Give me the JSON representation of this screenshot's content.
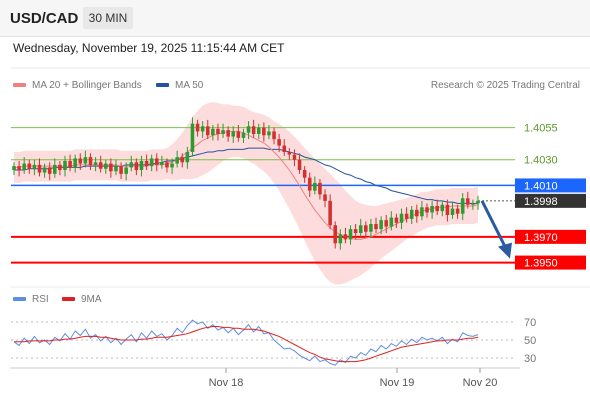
{
  "header": {
    "symbol": "USD/CAD",
    "timeframe": "30 MIN"
  },
  "datetime": "Wednesday, November 19, 2025 11:15:44 AM CET",
  "legend": {
    "ma20_label": "MA 20 + Bollinger Bands",
    "ma50_label": "MA 50",
    "credit": "Research © 2025 Trading Central",
    "rsi_label": "RSI",
    "ma9_label": "9MA"
  },
  "colors": {
    "ma20": "#f08080",
    "ma50": "#26519e",
    "rsi": "#5b8fe0",
    "ma9": "#e02020",
    "up": "#2e9b2e",
    "down": "#d43030",
    "support": "#ff0000",
    "resistance": "#1a66ff",
    "green_level": "#7cc048",
    "band": "#fcd6d6",
    "arrow": "#2c5aa0"
  },
  "chart_data": [
    {
      "type": "candlestick",
      "x_ticks": [
        "Nov 18",
        "Nov 19",
        "Nov 20"
      ],
      "y_range": [
        1.3938,
        1.4078
      ],
      "levels": [
        {
          "value": 1.4055,
          "label": "1.4055",
          "kind": "green"
        },
        {
          "value": 1.403,
          "label": "1.4030",
          "kind": "green"
        },
        {
          "value": 1.401,
          "label": "1.4010",
          "kind": "resistance"
        },
        {
          "value": 1.397,
          "label": "1.3970",
          "kind": "support"
        },
        {
          "value": 1.395,
          "label": "1.3950",
          "kind": "support"
        }
      ],
      "current_price": {
        "value": 1.3998,
        "label": "1.3998"
      },
      "forecast_target": 1.395,
      "closes": [
        1.4025,
        1.4022,
        1.4027,
        1.4023,
        1.4026,
        1.402,
        1.4024,
        1.4019,
        1.4026,
        1.4022,
        1.4029,
        1.4024,
        1.4031,
        1.4027,
        1.4032,
        1.4026,
        1.4028,
        1.4023,
        1.4027,
        1.4021,
        1.4025,
        1.4019,
        1.4024,
        1.4028,
        1.4022,
        1.4029,
        1.4025,
        1.4031,
        1.4026,
        1.4028,
        1.4024,
        1.4027,
        1.4032,
        1.4028,
        1.4036,
        1.4058,
        1.4052,
        1.4056,
        1.4049,
        1.4054,
        1.405,
        1.4053,
        1.4048,
        1.4052,
        1.4047,
        1.4051,
        1.4056,
        1.405,
        1.4055,
        1.4049,
        1.4052,
        1.4046,
        1.4041,
        1.4036,
        1.4034,
        1.403,
        1.4022,
        1.4016,
        1.4006,
        1.4012,
        1.4003,
        1.3998,
        1.3979,
        1.3965,
        1.3972,
        1.3968,
        1.3976,
        1.3973,
        1.3979,
        1.3974,
        1.398,
        1.3976,
        1.3983,
        1.3978,
        1.3985,
        1.3981,
        1.3988,
        1.3984,
        1.3991,
        1.3986,
        1.3993,
        1.3989,
        1.3994,
        1.399,
        1.3995,
        1.3987,
        1.3992,
        1.3988,
        1.4,
        1.3995,
        1.3996,
        1.3998
      ],
      "ma20": [
        1.4024,
        1.4024,
        1.4025,
        1.4025,
        1.4025,
        1.4025,
        1.4025,
        1.4025,
        1.4025,
        1.4025,
        1.4025,
        1.4025,
        1.4026,
        1.4026,
        1.4026,
        1.4026,
        1.4026,
        1.4026,
        1.4026,
        1.4026,
        1.4026,
        1.4025,
        1.4025,
        1.4025,
        1.4025,
        1.4025,
        1.4025,
        1.4026,
        1.4026,
        1.4026,
        1.4027,
        1.4028,
        1.403,
        1.4033,
        1.4036,
        1.4039,
        1.4042,
        1.4045,
        1.4047,
        1.4049,
        1.405,
        1.4051,
        1.4052,
        1.4052,
        1.4052,
        1.4051,
        1.4049,
        1.4047,
        1.4045,
        1.4043,
        1.404,
        1.4036,
        1.4032,
        1.4027,
        1.4022,
        1.4016,
        1.401,
        1.4003,
        1.3997,
        1.3991,
        1.3986,
        1.3981,
        1.3977,
        1.3974,
        1.3972,
        1.397,
        1.3969,
        1.3968,
        1.3968,
        1.3969,
        1.397,
        1.3972,
        1.3974,
        1.3976,
        1.3978,
        1.398,
        1.3982,
        1.3984,
        1.3986,
        1.3988,
        1.399,
        1.3991,
        1.3992,
        1.3993,
        1.3993,
        1.3993,
        1.3994,
        1.3994,
        1.3994,
        1.3994,
        1.3994,
        1.3995
      ],
      "ma50": [
        1.4022,
        1.4022,
        1.4022,
        1.4023,
        1.4023,
        1.4023,
        1.4023,
        1.4023,
        1.4024,
        1.4024,
        1.4024,
        1.4024,
        1.4024,
        1.4024,
        1.4025,
        1.4025,
        1.4025,
        1.4025,
        1.4025,
        1.4025,
        1.4025,
        1.4025,
        1.4026,
        1.4026,
        1.4026,
        1.4026,
        1.4026,
        1.4027,
        1.4027,
        1.4028,
        1.4029,
        1.4029,
        1.403,
        1.4031,
        1.4032,
        1.4033,
        1.4034,
        1.4035,
        1.4036,
        1.4036,
        1.4037,
        1.4037,
        1.4038,
        1.4038,
        1.4038,
        1.4038,
        1.4039,
        1.4039,
        1.4039,
        1.4039,
        1.4038,
        1.4038,
        1.4038,
        1.4037,
        1.4036,
        1.4035,
        1.4034,
        1.4032,
        1.4031,
        1.403,
        1.4028,
        1.4026,
        1.4025,
        1.4023,
        1.4021,
        1.4019,
        1.4018,
        1.4016,
        1.4015,
        1.4013,
        1.4012,
        1.401,
        1.4009,
        1.4008,
        1.4006,
        1.4005,
        1.4004,
        1.4003,
        1.4002,
        1.4001,
        1.4,
        1.3999,
        1.3999,
        1.3998,
        1.3998,
        1.3997,
        1.3997,
        1.3996,
        1.3996,
        1.3996,
        1.3996,
        1.3996
      ],
      "bb_width": [
        0.0012,
        0.0012,
        0.0012,
        0.0012,
        0.0012,
        0.0012,
        0.0012,
        0.0012,
        0.0012,
        0.0012,
        0.0012,
        0.0012,
        0.0012,
        0.0012,
        0.0012,
        0.0012,
        0.0012,
        0.0012,
        0.0012,
        0.0012,
        0.0012,
        0.0012,
        0.0012,
        0.0012,
        0.0012,
        0.0012,
        0.0012,
        0.0012,
        0.0012,
        0.0012,
        0.0012,
        0.0014,
        0.0016,
        0.0018,
        0.0021,
        0.0024,
        0.0026,
        0.0027,
        0.0027,
        0.0026,
        0.0024,
        0.0022,
        0.0021,
        0.002,
        0.002,
        0.002,
        0.002,
        0.002,
        0.0021,
        0.0022,
        0.0023,
        0.0024,
        0.0026,
        0.0028,
        0.003,
        0.0032,
        0.0034,
        0.0036,
        0.0038,
        0.004,
        0.0041,
        0.0042,
        0.0042,
        0.0041,
        0.0039,
        0.0036,
        0.0033,
        0.003,
        0.0028,
        0.0026,
        0.0024,
        0.0022,
        0.0021,
        0.002,
        0.0019,
        0.0018,
        0.0017,
        0.0016,
        0.0016,
        0.0015,
        0.0015,
        0.0014,
        0.0014,
        0.0014,
        0.0014,
        0.0014,
        0.0014,
        0.0014,
        0.0014,
        0.0014,
        0.0014,
        0.0014
      ]
    },
    {
      "type": "line",
      "name": "RSI",
      "y_range": [
        20,
        80
      ],
      "y_ticks": [
        "70",
        "50",
        "30"
      ],
      "rsi": [
        48,
        44,
        52,
        46,
        54,
        47,
        50,
        45,
        53,
        49,
        57,
        51,
        60,
        55,
        62,
        52,
        56,
        49,
        54,
        47,
        52,
        45,
        51,
        56,
        48,
        58,
        52,
        60,
        54,
        57,
        50,
        55,
        63,
        58,
        66,
        72,
        68,
        70,
        63,
        67,
        61,
        64,
        58,
        63,
        56,
        61,
        67,
        59,
        65,
        57,
        58,
        50,
        45,
        40,
        41,
        38,
        33,
        30,
        27,
        32,
        26,
        28,
        24,
        22,
        28,
        25,
        32,
        30,
        36,
        33,
        40,
        37,
        44,
        40,
        46,
        43,
        49,
        45,
        51,
        47,
        53,
        50,
        52,
        49,
        53,
        46,
        51,
        48,
        58,
        55,
        54,
        56
      ],
      "ma9": [
        48,
        48,
        48,
        49,
        49,
        49,
        49,
        49,
        50,
        50,
        51,
        51,
        52,
        53,
        54,
        54,
        54,
        53,
        53,
        52,
        51,
        50,
        50,
        50,
        50,
        51,
        51,
        52,
        53,
        53,
        53,
        54,
        55,
        56,
        57,
        59,
        61,
        63,
        64,
        65,
        65,
        64,
        64,
        63,
        63,
        62,
        62,
        62,
        61,
        60,
        58,
        56,
        54,
        51,
        48,
        45,
        42,
        39,
        36,
        34,
        31,
        29,
        28,
        27,
        26,
        26,
        26,
        26,
        27,
        28,
        30,
        32,
        34,
        36,
        38,
        40,
        42,
        43,
        44,
        45,
        46,
        47,
        48,
        49,
        49,
        50,
        50,
        50,
        51,
        52,
        52,
        53
      ]
    }
  ]
}
